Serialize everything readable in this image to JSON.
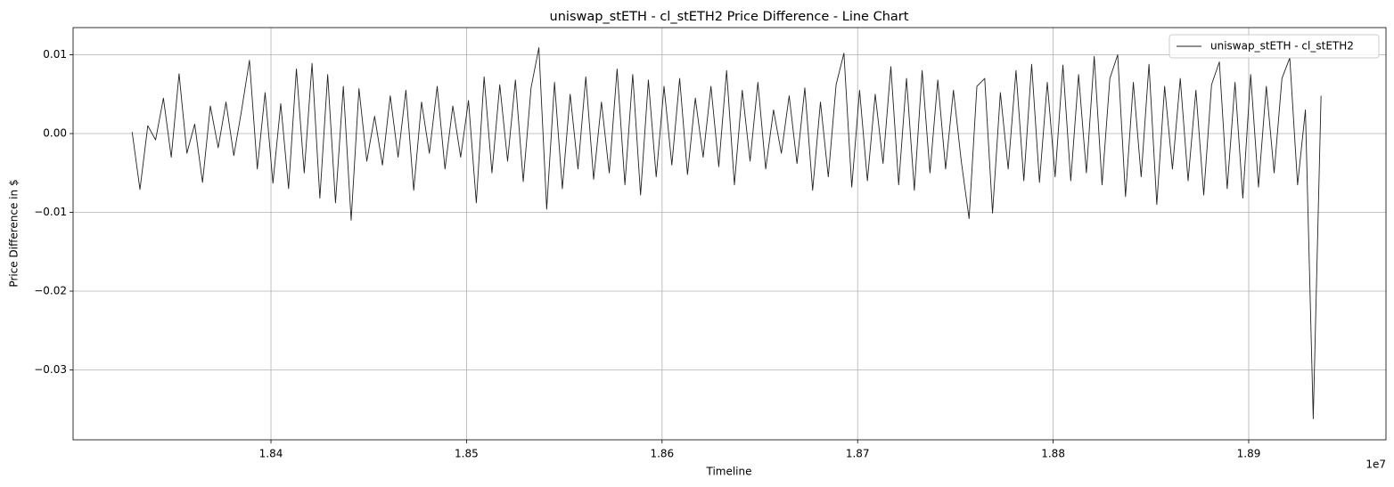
{
  "chart_data": {
    "type": "line",
    "title": "uniswap_stETH - cl_stETH2 Price Difference - Line Chart",
    "xlabel": "Timeline",
    "ylabel": "Price Difference in $",
    "x_offset_label": "1e7",
    "legend": "upper right",
    "grid": true,
    "xlim": [
      18298800,
      18970200
    ],
    "ylim": [
      -0.03887,
      0.01345
    ],
    "xticks": [
      {
        "value": 18400000,
        "label": "1.84"
      },
      {
        "value": 18500000,
        "label": "1.85"
      },
      {
        "value": 18600000,
        "label": "1.86"
      },
      {
        "value": 18700000,
        "label": "1.87"
      },
      {
        "value": 18800000,
        "label": "1.88"
      },
      {
        "value": 18900000,
        "label": "1.89"
      }
    ],
    "yticks": [
      {
        "value": -0.03,
        "label": "−0.03"
      },
      {
        "value": -0.02,
        "label": "−0.02"
      },
      {
        "value": -0.01,
        "label": "−0.01"
      },
      {
        "value": 0,
        "label": "0.00"
      },
      0.01
    ],
    "x": [
      18329000,
      18333000,
      18337000,
      18341000,
      18345000,
      18349000,
      18353000,
      18357000,
      18361000,
      18365000,
      18369000,
      18373000,
      18377000,
      18381000,
      18385000,
      18389000,
      18393000,
      18397000,
      18401000,
      18405000,
      18409000,
      18413000,
      18417000,
      18421000,
      18425000,
      18429000,
      18433000,
      18437000,
      18441000,
      18445000,
      18449000,
      18453000,
      18457000,
      18461000,
      18465000,
      18469000,
      18473000,
      18477000,
      18481000,
      18485000,
      18489000,
      18493000,
      18497000,
      18501000,
      18505000,
      18509000,
      18513000,
      18517000,
      18521000,
      18525000,
      18529000,
      18533000,
      18537000,
      18541000,
      18545000,
      18549000,
      18553000,
      18557000,
      18561000,
      18565000,
      18569000,
      18573000,
      18577000,
      18581000,
      18585000,
      18589000,
      18593000,
      18597000,
      18601000,
      18605000,
      18609000,
      18613000,
      18617000,
      18621000,
      18625000,
      18629000,
      18633000,
      18637000,
      18641000,
      18645000,
      18649000,
      18653000,
      18657000,
      18661000,
      18665000,
      18669000,
      18673000,
      18677000,
      18681000,
      18685000,
      18689000,
      18693000,
      18697000,
      18701000,
      18705000,
      18709000,
      18713000,
      18717000,
      18721000,
      18725000,
      18729000,
      18733000,
      18737000,
      18741000,
      18745000,
      18749000,
      18753000,
      18757000,
      18761000,
      18765000,
      18769000,
      18773000,
      18777000,
      18781000,
      18785000,
      18789000,
      18793000,
      18797000,
      18801000,
      18805000,
      18809000,
      18813000,
      18817000,
      18821000,
      18825000,
      18829000,
      18833000,
      18837000,
      18841000,
      18845000,
      18849000,
      18853000,
      18857000,
      18861000,
      18865000,
      18869000,
      18873000,
      18877000,
      18881000,
      18885000,
      18889000,
      18893000,
      18897000,
      18901000,
      18905000,
      18909000,
      18913000,
      18917000,
      18921000,
      18925000,
      18929000,
      18933000,
      18937000
    ],
    "series": [
      {
        "name": "uniswap_stETH - cl_stETH2",
        "color": "#222222",
        "values": [
          0.0002,
          -0.0071,
          0.001,
          -0.0008,
          0.0045,
          -0.003,
          0.0076,
          -0.0025,
          0.0012,
          -0.0062,
          0.0035,
          -0.0018,
          0.004,
          -0.0028,
          0.003,
          0.0093,
          -0.0045,
          0.0052,
          -0.0063,
          0.0038,
          -0.007,
          0.0082,
          -0.005,
          0.0089,
          -0.0082,
          0.0075,
          -0.0088,
          0.006,
          -0.011,
          0.0057,
          -0.0035,
          0.0022,
          -0.004,
          0.0048,
          -0.003,
          0.0055,
          -0.0072,
          0.004,
          -0.0025,
          0.006,
          -0.0045,
          0.0035,
          -0.003,
          0.0042,
          -0.0088,
          0.0072,
          -0.005,
          0.0062,
          -0.0035,
          0.0068,
          -0.0061,
          0.0058,
          0.0109,
          -0.0096,
          0.0065,
          -0.007,
          0.005,
          -0.0045,
          0.0072,
          -0.0058,
          0.004,
          -0.005,
          0.0082,
          -0.0065,
          0.0075,
          -0.0078,
          0.0068,
          -0.0055,
          0.006,
          -0.004,
          0.007,
          -0.0052,
          0.0045,
          -0.003,
          0.006,
          -0.0042,
          0.008,
          -0.0065,
          0.0055,
          -0.0035,
          0.0065,
          -0.0045,
          0.003,
          -0.0025,
          0.0048,
          -0.0038,
          0.0058,
          -0.0072,
          0.004,
          -0.0055,
          0.0062,
          0.0102,
          -0.0068,
          0.0055,
          -0.006,
          0.005,
          -0.0038,
          0.0085,
          -0.0065,
          0.007,
          -0.0072,
          0.008,
          -0.005,
          0.0068,
          -0.0045,
          0.0055,
          -0.0035,
          -0.0108,
          0.006,
          0.007,
          -0.0101,
          0.0052,
          -0.0045,
          0.008,
          -0.006,
          0.0088,
          -0.0062,
          0.0065,
          -0.0055,
          0.0087,
          -0.006,
          0.0075,
          -0.005,
          0.0098,
          -0.0065,
          0.007,
          0.01,
          -0.008,
          0.0065,
          -0.0055,
          0.0088,
          -0.009,
          0.006,
          -0.0045,
          0.007,
          -0.006,
          0.0055,
          -0.0078,
          0.0062,
          0.0091,
          -0.007,
          0.0065,
          -0.0082,
          0.0075,
          -0.0068,
          0.006,
          -0.005,
          0.007,
          0.0096,
          -0.0065,
          0.003,
          -0.0362,
          0.0048
        ]
      }
    ]
  }
}
